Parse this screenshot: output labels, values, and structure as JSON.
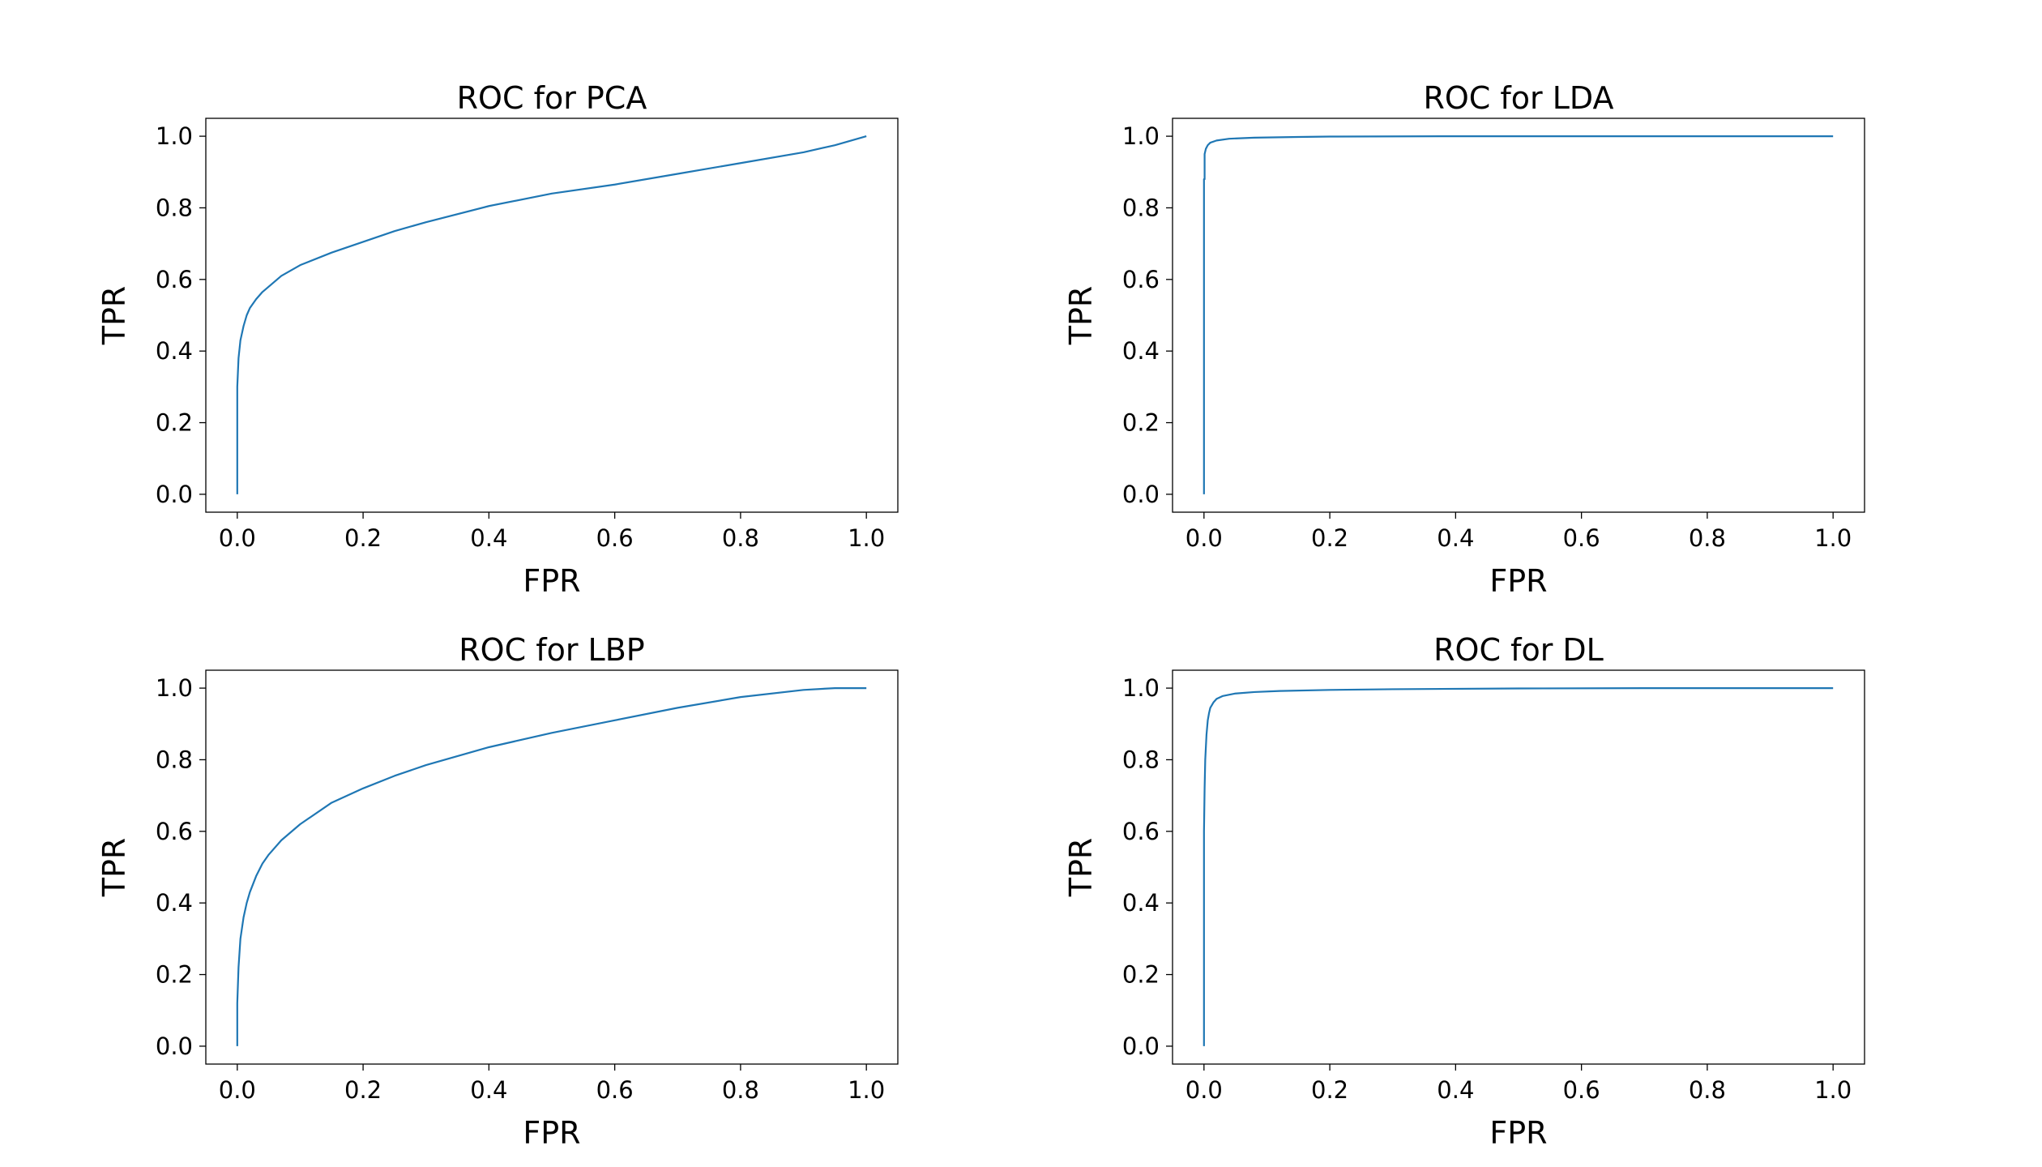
{
  "figure": {
    "line_color": "#1f77b4"
  },
  "chart_data": [
    {
      "type": "line",
      "title": "ROC for PCA",
      "xlabel": "FPR",
      "ylabel": "TPR",
      "xlim": [
        -0.05,
        1.05
      ],
      "ylim": [
        -0.05,
        1.05
      ],
      "xticks": [
        0.0,
        0.2,
        0.4,
        0.6,
        0.8,
        1.0
      ],
      "yticks": [
        0.0,
        0.2,
        0.4,
        0.6,
        0.8,
        1.0
      ],
      "tick_labels": [
        "0.0",
        "0.2",
        "0.4",
        "0.6",
        "0.8",
        "1.0"
      ],
      "grid": false,
      "series": [
        {
          "color": "#1f77b4",
          "x": [
            0.0,
            0.0,
            0.002,
            0.005,
            0.01,
            0.015,
            0.02,
            0.03,
            0.04,
            0.05,
            0.07,
            0.1,
            0.15,
            0.2,
            0.25,
            0.3,
            0.4,
            0.5,
            0.6,
            0.7,
            0.8,
            0.9,
            0.95,
            1.0
          ],
          "y": [
            0.0,
            0.3,
            0.38,
            0.43,
            0.47,
            0.5,
            0.52,
            0.545,
            0.565,
            0.58,
            0.61,
            0.64,
            0.675,
            0.705,
            0.735,
            0.76,
            0.805,
            0.84,
            0.865,
            0.895,
            0.925,
            0.955,
            0.975,
            1.0
          ]
        }
      ]
    },
    {
      "type": "line",
      "title": "ROC for LDA",
      "xlabel": "FPR",
      "ylabel": "TPR",
      "xlim": [
        -0.05,
        1.05
      ],
      "ylim": [
        -0.05,
        1.05
      ],
      "xticks": [
        0.0,
        0.2,
        0.4,
        0.6,
        0.8,
        1.0
      ],
      "yticks": [
        0.0,
        0.2,
        0.4,
        0.6,
        0.8,
        1.0
      ],
      "tick_labels": [
        "0.0",
        "0.2",
        "0.4",
        "0.6",
        "0.8",
        "1.0"
      ],
      "grid": false,
      "series": [
        {
          "color": "#1f77b4",
          "x": [
            0.0,
            0.0,
            0.001,
            0.001,
            0.003,
            0.006,
            0.01,
            0.02,
            0.04,
            0.08,
            0.15,
            0.2,
            0.4,
            0.6,
            0.8,
            1.0
          ],
          "y": [
            0.0,
            0.88,
            0.88,
            0.95,
            0.965,
            0.975,
            0.982,
            0.988,
            0.993,
            0.996,
            0.998,
            0.999,
            1.0,
            1.0,
            1.0,
            1.0
          ]
        }
      ]
    },
    {
      "type": "line",
      "title": "ROC for LBP",
      "xlabel": "FPR",
      "ylabel": "TPR",
      "xlim": [
        -0.05,
        1.05
      ],
      "ylim": [
        -0.05,
        1.05
      ],
      "xticks": [
        0.0,
        0.2,
        0.4,
        0.6,
        0.8,
        1.0
      ],
      "yticks": [
        0.0,
        0.2,
        0.4,
        0.6,
        0.8,
        1.0
      ],
      "tick_labels": [
        "0.0",
        "0.2",
        "0.4",
        "0.6",
        "0.8",
        "1.0"
      ],
      "grid": false,
      "series": [
        {
          "color": "#1f77b4",
          "x": [
            0.0,
            0.0,
            0.002,
            0.005,
            0.01,
            0.015,
            0.02,
            0.03,
            0.04,
            0.05,
            0.07,
            0.1,
            0.15,
            0.2,
            0.25,
            0.3,
            0.4,
            0.5,
            0.6,
            0.7,
            0.8,
            0.9,
            0.95,
            1.0
          ],
          "y": [
            0.0,
            0.12,
            0.22,
            0.3,
            0.36,
            0.4,
            0.43,
            0.475,
            0.51,
            0.535,
            0.575,
            0.62,
            0.68,
            0.72,
            0.755,
            0.785,
            0.835,
            0.875,
            0.91,
            0.945,
            0.975,
            0.995,
            1.0,
            1.0
          ]
        }
      ]
    },
    {
      "type": "line",
      "title": "ROC for DL",
      "xlabel": "FPR",
      "ylabel": "TPR",
      "xlim": [
        -0.05,
        1.05
      ],
      "ylim": [
        -0.05,
        1.05
      ],
      "xticks": [
        0.0,
        0.2,
        0.4,
        0.6,
        0.8,
        1.0
      ],
      "yticks": [
        0.0,
        0.2,
        0.4,
        0.6,
        0.8,
        1.0
      ],
      "tick_labels": [
        "0.0",
        "0.2",
        "0.4",
        "0.6",
        "0.8",
        "1.0"
      ],
      "grid": false,
      "series": [
        {
          "color": "#1f77b4",
          "x": [
            0.0,
            0.0,
            0.001,
            0.002,
            0.004,
            0.006,
            0.008,
            0.01,
            0.015,
            0.02,
            0.03,
            0.05,
            0.08,
            0.12,
            0.2,
            0.3,
            0.5,
            0.7,
            1.0
          ],
          "y": [
            0.0,
            0.6,
            0.72,
            0.8,
            0.87,
            0.91,
            0.93,
            0.945,
            0.96,
            0.97,
            0.978,
            0.985,
            0.989,
            0.992,
            0.995,
            0.997,
            0.999,
            1.0,
            1.0
          ]
        }
      ]
    }
  ]
}
